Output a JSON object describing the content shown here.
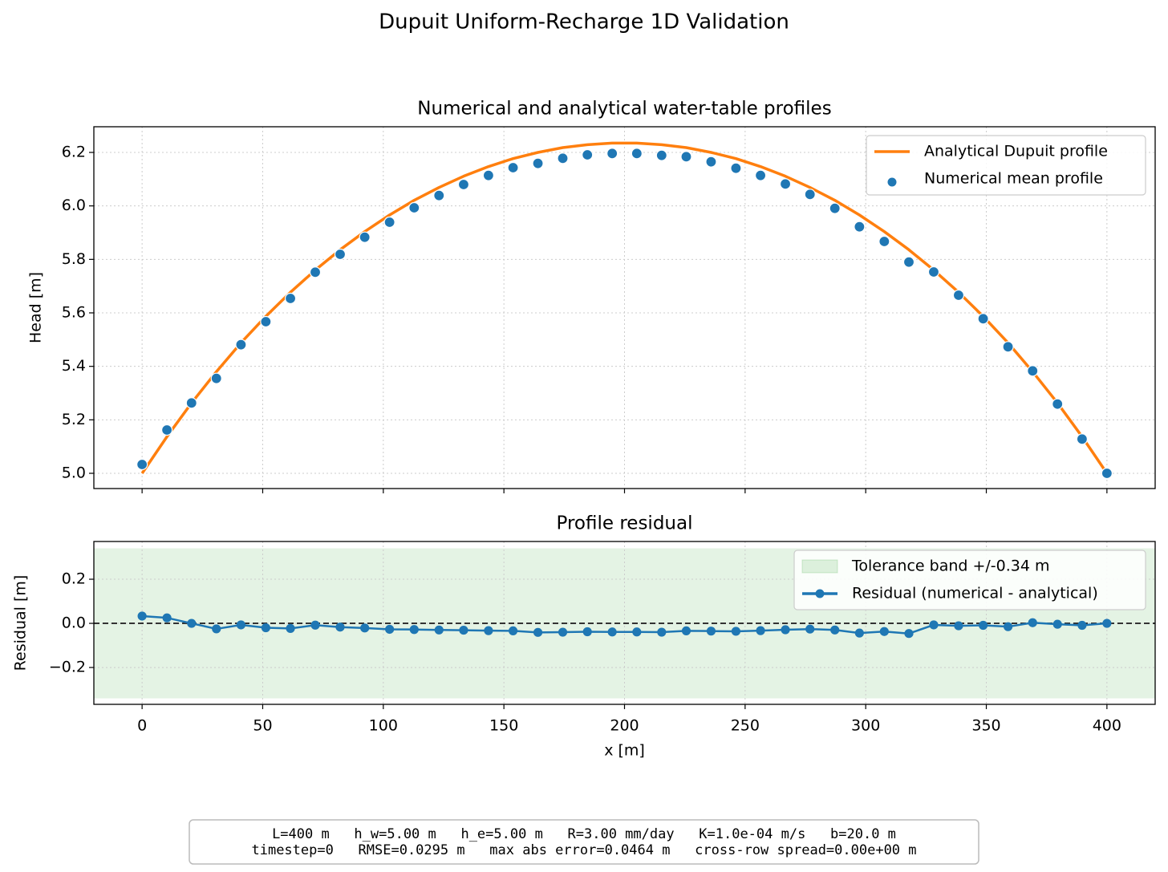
{
  "title": "Dupuit Uniform-Recharge 1D Validation",
  "chart_data": [
    {
      "type": "line",
      "title": "Numerical and analytical water-table profiles",
      "y_label": "Head [m]",
      "x": [
        0,
        10.3,
        20.5,
        30.8,
        41.0,
        51.3,
        61.5,
        71.8,
        82.1,
        92.3,
        102.6,
        112.8,
        123.1,
        133.3,
        143.6,
        153.8,
        164.1,
        174.4,
        184.6,
        194.9,
        205.1,
        215.4,
        225.6,
        235.9,
        246.2,
        256.4,
        266.7,
        276.9,
        287.2,
        297.4,
        307.7,
        317.9,
        328.2,
        338.5,
        348.7,
        359.0,
        369.2,
        379.5,
        389.7,
        400.0
      ],
      "series": [
        {
          "name": "Analytical Dupuit profile",
          "color": "#ff7f0e",
          "style": "line",
          "values": [
            5.0,
            5.137,
            5.263,
            5.38,
            5.488,
            5.587,
            5.677,
            5.76,
            5.836,
            5.904,
            5.966,
            6.021,
            6.069,
            6.111,
            6.147,
            6.177,
            6.2,
            6.218,
            6.229,
            6.235,
            6.235,
            6.229,
            6.218,
            6.2,
            6.177,
            6.147,
            6.111,
            6.069,
            6.021,
            5.966,
            5.904,
            5.836,
            5.76,
            5.677,
            5.587,
            5.488,
            5.38,
            5.263,
            5.137,
            5.0
          ]
        },
        {
          "name": "Numerical mean profile",
          "color": "#1f77b4",
          "style": "markers",
          "values": [
            5.033,
            5.162,
            5.263,
            5.355,
            5.481,
            5.567,
            5.654,
            5.752,
            5.819,
            5.883,
            5.939,
            5.993,
            6.039,
            6.08,
            6.114,
            6.143,
            6.159,
            6.178,
            6.191,
            6.196,
            6.196,
            6.189,
            6.184,
            6.165,
            6.141,
            6.114,
            6.082,
            6.043,
            5.991,
            5.922,
            5.867,
            5.79,
            5.753,
            5.666,
            5.578,
            5.473,
            5.383,
            5.259,
            5.128,
            5.0
          ]
        }
      ],
      "xlim": [
        -20,
        420
      ],
      "ylim": [
        4.943,
        6.296
      ],
      "yticks": [
        {
          "value": 5.0,
          "label": "5.0"
        },
        5.2,
        5.4,
        5.6,
        5.8,
        {
          "value": 6.0,
          "label": "6.0"
        },
        6.2
      ],
      "grid": true,
      "legend": "upper-right"
    },
    {
      "type": "line",
      "title": "Profile residual",
      "x_label": "x [m]",
      "y_label": "Residual [m]",
      "x": [
        0,
        10.3,
        20.5,
        30.8,
        41.0,
        51.3,
        61.5,
        71.8,
        82.1,
        92.3,
        102.6,
        112.8,
        123.1,
        133.3,
        143.6,
        153.8,
        164.1,
        174.4,
        184.6,
        194.9,
        205.1,
        215.4,
        225.6,
        235.9,
        246.2,
        256.4,
        266.7,
        276.9,
        287.2,
        297.4,
        307.7,
        317.9,
        328.2,
        338.5,
        348.7,
        359.0,
        369.2,
        379.5,
        389.7,
        400.0
      ],
      "band": {
        "name": "Tolerance band +/-0.34 m",
        "color": "#2ca02c",
        "halfwidth": 0.34
      },
      "reference_line": 0,
      "series": [
        {
          "name": "Residual (numerical - analytical)",
          "color": "#1f77b4",
          "style": "line-markers",
          "values": [
            0.033,
            0.025,
            0.0,
            -0.025,
            -0.007,
            -0.02,
            -0.023,
            -0.008,
            -0.017,
            -0.021,
            -0.027,
            -0.028,
            -0.03,
            -0.031,
            -0.033,
            -0.034,
            -0.041,
            -0.04,
            -0.038,
            -0.039,
            -0.039,
            -0.04,
            -0.034,
            -0.035,
            -0.036,
            -0.033,
            -0.029,
            -0.026,
            -0.03,
            -0.044,
            -0.037,
            -0.046,
            -0.007,
            -0.011,
            -0.009,
            -0.015,
            0.003,
            -0.004,
            -0.009,
            0.0
          ]
        }
      ],
      "xlim": [
        -20,
        420
      ],
      "ylim": [
        -0.367,
        0.371
      ],
      "xticks": [
        0,
        50,
        100,
        150,
        200,
        250,
        300,
        350,
        400
      ],
      "yticks": [
        {
          "value": -0.2,
          "label": "−0.2"
        },
        {
          "value": 0,
          "label": "0.0"
        },
        0.2
      ],
      "grid": true,
      "legend": "upper-right"
    }
  ],
  "footer": [
    "L=400 m   h_w=5.00 m   h_e=5.00 m   R=3.00 mm/day   K=1.0e-04 m/s   b=20.0 m",
    "timestep=0   RMSE=0.0295 m   max abs error=0.0464 m   cross-row spread=0.00e+00 m"
  ]
}
